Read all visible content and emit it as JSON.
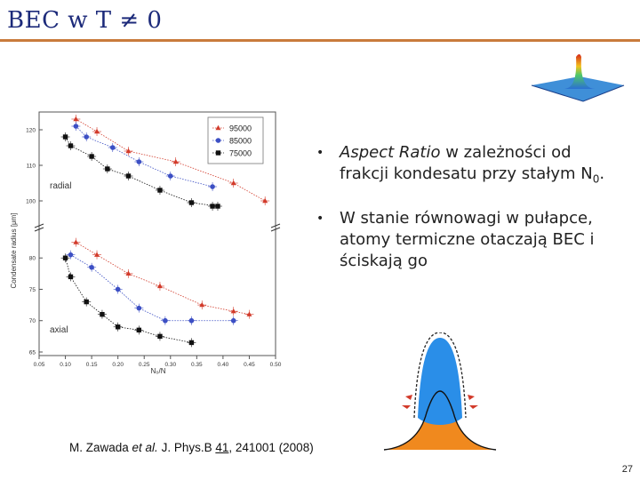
{
  "slide": {
    "title": "BEC w T ≠ 0",
    "page_number": "27"
  },
  "bullets": [
    {
      "em": "Aspect Ratio",
      "rest": " w zależności od frakcji kondesatu przy stałym N",
      "sub": "0",
      "tail": "."
    },
    {
      "text": "W stanie równowagi w pułapce, atomy termiczne otaczają BEC i ściskają go"
    }
  ],
  "citation": {
    "authors": "M. Zawada ",
    "etal": "et al.",
    "journal": " J. Phys.B ",
    "volume": "41",
    "rest": ", 241001 (2008)"
  },
  "colors": {
    "title": "#1c2a7a",
    "rule": "#c97b3c",
    "series_red": "#d23a2a",
    "series_blue": "#3c4fc4",
    "series_black": "#111111",
    "bec_blue": "#2a8ee8",
    "thermal_orange": "#f0891e"
  },
  "chart_data": {
    "type": "scatter",
    "xlabel": "N₀/N",
    "ylabel": "Condensate radius [μm]",
    "x_ticks": [
      "0.05",
      "0.10",
      "0.15",
      "0.20",
      "0.25",
      "0.30",
      "0.35",
      "0.40",
      "0.45",
      "0.50"
    ],
    "xlim": [
      0.05,
      0.5
    ],
    "panels": [
      {
        "label": "radial",
        "ylim": [
          94,
          124
        ],
        "y_ticks": [
          "100",
          "110",
          "120"
        ],
        "series": [
          {
            "name": "95000",
            "marker": "triangle",
            "color": "#d23a2a",
            "points": [
              [
                0.12,
                123
              ],
              [
                0.16,
                119.5
              ],
              [
                0.22,
                114
              ],
              [
                0.31,
                111
              ],
              [
                0.42,
                105
              ],
              [
                0.48,
                100
              ]
            ]
          },
          {
            "name": "85000",
            "marker": "circle",
            "color": "#3c4fc4",
            "points": [
              [
                0.12,
                121
              ],
              [
                0.14,
                118
              ],
              [
                0.19,
                115
              ],
              [
                0.24,
                111
              ],
              [
                0.3,
                107
              ],
              [
                0.38,
                104
              ]
            ]
          },
          {
            "name": "75000",
            "marker": "square",
            "color": "#111111",
            "points": [
              [
                0.1,
                118
              ],
              [
                0.11,
                115.5
              ],
              [
                0.15,
                112.5
              ],
              [
                0.18,
                109
              ],
              [
                0.22,
                107
              ],
              [
                0.28,
                103
              ],
              [
                0.34,
                99.5
              ],
              [
                0.39,
                98.5
              ],
              [
                0.38,
                98.5
              ]
            ]
          }
        ]
      },
      {
        "label": "axial",
        "ylim": [
          65,
          84
        ],
        "y_ticks": [
          "65",
          "70",
          "75",
          "80"
        ],
        "series": [
          {
            "name": "95000",
            "marker": "triangle",
            "color": "#d23a2a",
            "points": [
              [
                0.12,
                82.5
              ],
              [
                0.16,
                80.5
              ],
              [
                0.22,
                77.5
              ],
              [
                0.28,
                75.5
              ],
              [
                0.36,
                72.5
              ],
              [
                0.42,
                71.5
              ],
              [
                0.45,
                71
              ]
            ]
          },
          {
            "name": "85000",
            "marker": "circle",
            "color": "#3c4fc4",
            "points": [
              [
                0.11,
                80.5
              ],
              [
                0.15,
                78.5
              ],
              [
                0.2,
                75
              ],
              [
                0.24,
                72
              ],
              [
                0.29,
                70
              ],
              [
                0.34,
                70
              ],
              [
                0.42,
                70
              ]
            ]
          },
          {
            "name": "75000",
            "marker": "square",
            "color": "#111111",
            "points": [
              [
                0.1,
                80
              ],
              [
                0.11,
                77
              ],
              [
                0.14,
                73
              ],
              [
                0.17,
                71
              ],
              [
                0.2,
                69
              ],
              [
                0.24,
                68.5
              ],
              [
                0.28,
                67.5
              ],
              [
                0.34,
                66.5
              ]
            ]
          }
        ]
      }
    ],
    "legend": {
      "placement": "top-right",
      "entries": [
        "95000",
        "85000",
        "75000"
      ]
    }
  }
}
